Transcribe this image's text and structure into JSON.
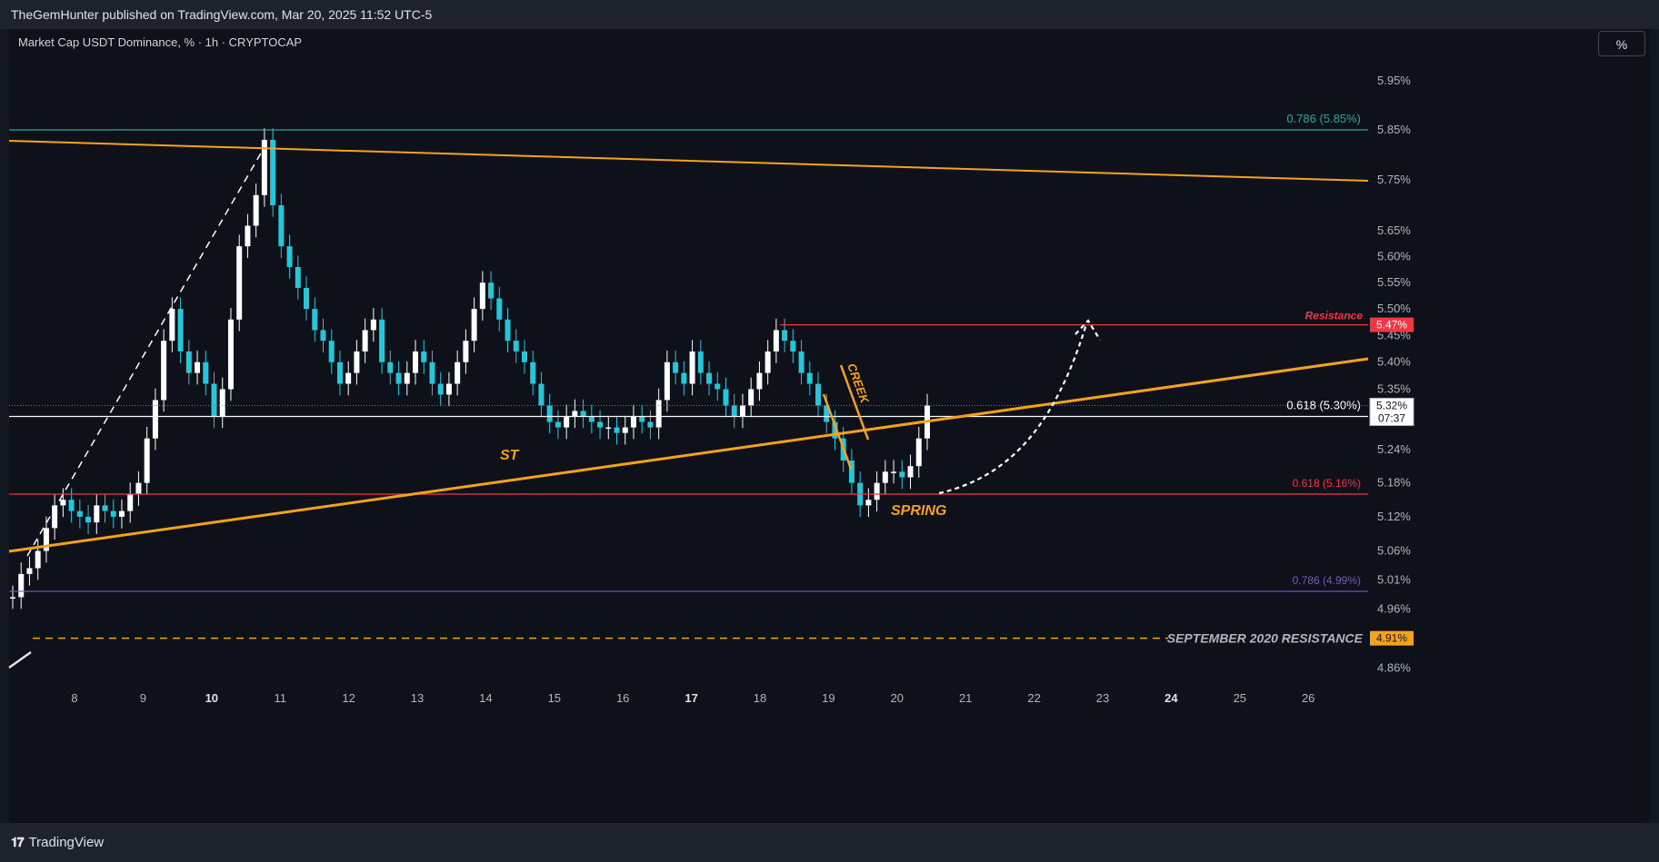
{
  "header": {
    "published_text": "TheGemHunter published on TradingView.com, Mar 20, 2025 11:52 UTC-5"
  },
  "symbol_title": "Market Cap USDT Dominance, % · 1h · CRYPTOCAP",
  "scale_button": "%",
  "footer": {
    "logo_text": "TradingView",
    "logo_mark": "𝟏𝟕"
  },
  "chart_data": {
    "type": "candlestick",
    "title": "Market Cap USDT Dominance, % · 1h · CRYPTOCAP",
    "y_axis": {
      "labels": [
        "5.95%",
        "5.85%",
        "5.75%",
        "5.65%",
        "5.60%",
        "5.55%",
        "5.50%",
        "5.45%",
        "5.40%",
        "5.35%",
        "5.24%",
        "5.18%",
        "5.12%",
        "5.06%",
        "5.01%",
        "4.96%",
        "4.86%"
      ],
      "values": [
        5.95,
        5.85,
        5.75,
        5.65,
        5.6,
        5.55,
        5.5,
        5.45,
        5.4,
        5.35,
        5.24,
        5.18,
        5.12,
        5.06,
        5.01,
        4.96,
        4.86
      ],
      "range": [
        4.83,
        6.02
      ],
      "scale": "log"
    },
    "x_axis": {
      "labels": [
        "8",
        "9",
        "10",
        "11",
        "12",
        "13",
        "14",
        "15",
        "16",
        "17",
        "18",
        "19",
        "20",
        "21",
        "22",
        "23",
        "24",
        "25",
        "26"
      ],
      "bold": [
        "10",
        "17",
        "24"
      ]
    },
    "price_tags": [
      {
        "label": "5.47%",
        "value": 5.47,
        "color": "#f23645"
      },
      {
        "label": "5.32%",
        "value": 5.32,
        "color": "#ffffff",
        "countdown": "07:37"
      },
      {
        "label": "4.91%",
        "value": 4.91,
        "color": "#f7a21b"
      }
    ],
    "levels": [
      {
        "label": "0.786 (5.85%)",
        "value": 5.85,
        "color": "#22ab94"
      },
      {
        "label": "0.618 (5.30%)",
        "value": 5.3,
        "color": "#ffffff"
      },
      {
        "label": "0.618 (5.16%)",
        "value": 5.16,
        "color": "#f23645"
      },
      {
        "label": "0.786 (4.99%)",
        "value": 4.99,
        "color": "#7e57c2"
      },
      {
        "label": "SEPTEMBER 2020 RESISTANCE",
        "value": 4.91,
        "color": "#f7a21b",
        "style": "dashed"
      },
      {
        "label": "Resistance",
        "value": 5.47,
        "color": "#f23645"
      }
    ],
    "annotations": [
      "ST",
      "SPRING",
      "CREEK"
    ],
    "series": [
      {
        "values": [
          4.98,
          5.02,
          5.03,
          5.06,
          5.1,
          5.14,
          5.15,
          5.13,
          5.12,
          5.11,
          5.14,
          5.13,
          5.12,
          5.13,
          5.16,
          5.18,
          5.26,
          5.33,
          5.44,
          5.5,
          5.42,
          5.38,
          5.4,
          5.36,
          5.3,
          5.35,
          5.48,
          5.62,
          5.66,
          5.72,
          5.83,
          5.7,
          5.62,
          5.58,
          5.54,
          5.5,
          5.46,
          5.44,
          5.4,
          5.36,
          5.38,
          5.42,
          5.46,
          5.48,
          5.4,
          5.38,
          5.36,
          5.38,
          5.42,
          5.4,
          5.36,
          5.34,
          5.36,
          5.4,
          5.44,
          5.5,
          5.55,
          5.52,
          5.48,
          5.44,
          5.42,
          5.4,
          5.36,
          5.32,
          5.29,
          5.28,
          5.3,
          5.31,
          5.3,
          5.29,
          5.28,
          5.28,
          5.27,
          5.28,
          5.3,
          5.29,
          5.28,
          5.33,
          5.4,
          5.38,
          5.36,
          5.42,
          5.38,
          5.36,
          5.35,
          5.32,
          5.3,
          5.32,
          5.35,
          5.38,
          5.42,
          5.46,
          5.44,
          5.42,
          5.38,
          5.36,
          5.32,
          5.29,
          5.26,
          5.22,
          5.18,
          5.14,
          5.15,
          5.18,
          5.2,
          5.2,
          5.19,
          5.21,
          5.26,
          5.32
        ]
      }
    ]
  }
}
